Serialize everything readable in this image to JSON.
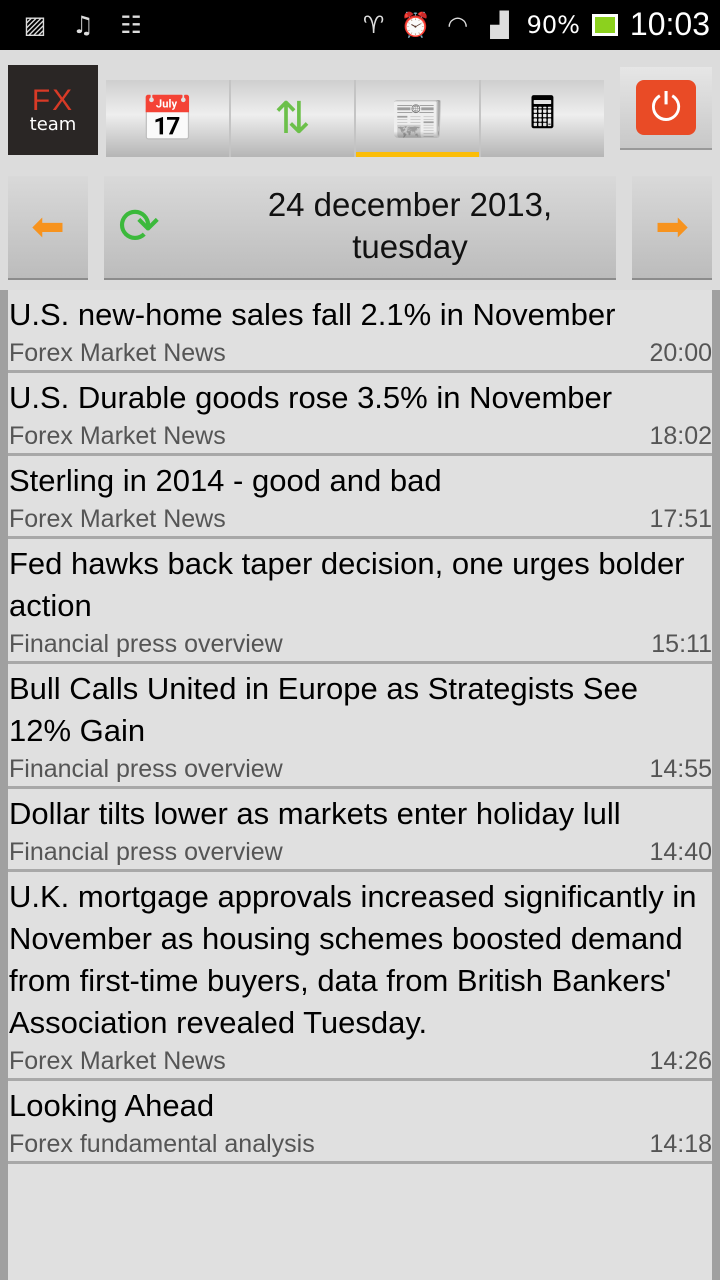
{
  "status_bar": {
    "battery": "90%",
    "time": "10:03"
  },
  "app": {
    "logo_top": "FX",
    "logo_bottom": "team"
  },
  "tabs": [
    {
      "name": "calendar",
      "active": false
    },
    {
      "name": "quotes",
      "active": false
    },
    {
      "name": "news",
      "active": true
    },
    {
      "name": "calculator",
      "active": false
    }
  ],
  "date": {
    "line1": "24 december 2013,",
    "line2": "tuesday"
  },
  "colors": {
    "accent": "#fbbd08",
    "power": "#e94b26"
  },
  "news": [
    {
      "title": "U.S. new-home sales fall 2.1% in November",
      "source": "Forex Market News",
      "time": "20:00"
    },
    {
      "title": "U.S. Durable goods rose 3.5% in November",
      "source": "Forex Market News",
      "time": "18:02"
    },
    {
      "title": "Sterling in 2014 - good and bad",
      "source": "Forex Market News",
      "time": "17:51"
    },
    {
      "title": "Fed hawks back taper decision, one urges bolder action",
      "source": "Financial press overview",
      "time": "15:11"
    },
    {
      "title": "Bull Calls United in Europe as Strategists See 12% Gain",
      "source": "Financial press overview",
      "time": "14:55"
    },
    {
      "title": "Dollar tilts lower as markets enter holiday lull",
      "source": "Financial press overview",
      "time": "14:40"
    },
    {
      "title": "U.K. mortgage approvals increased significantly in November as housing schemes boosted demand from first-time buyers, data from British Bankers' Association revealed Tuesday.",
      "source": "Forex Market News",
      "time": "14:26"
    },
    {
      "title": "Looking Ahead",
      "source": "Forex fundamental analysis",
      "time": "14:18"
    }
  ]
}
